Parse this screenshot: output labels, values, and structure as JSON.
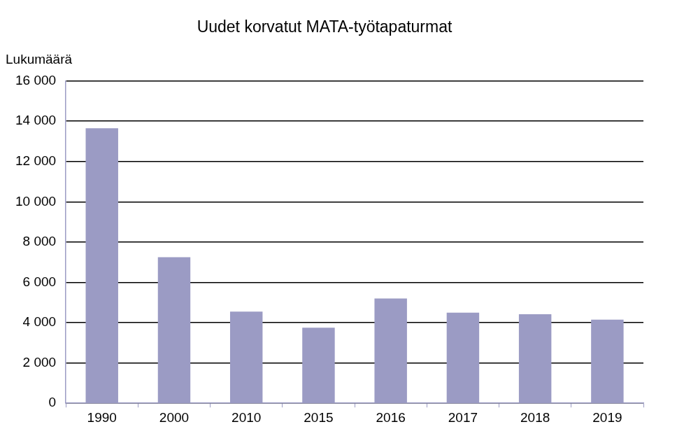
{
  "chart_data": {
    "type": "bar",
    "title": "Uudet korvatut MATA-työtapaturmat",
    "ylabel": "Lukumäärä",
    "categories": [
      "1990",
      "2000",
      "2010",
      "2015",
      "2016",
      "2017",
      "2018",
      "2019"
    ],
    "values": [
      13650,
      7250,
      4550,
      3750,
      5200,
      4500,
      4420,
      4150
    ],
    "color": "#9b9bc4",
    "ylim": [
      0,
      16000
    ],
    "yticks": [
      0,
      {
        "value": 2000,
        "label": "2 000"
      },
      {
        "value": 4000,
        "label": "4 000"
      },
      {
        "value": 6000,
        "label": "6 000"
      },
      {
        "value": 8000,
        "label": "8 000"
      },
      {
        "value": 10000,
        "label": "10 000"
      },
      {
        "value": 12000,
        "label": "12 000"
      },
      {
        "value": 14000,
        "label": "14 000"
      },
      {
        "value": 16000,
        "label": "16 000"
      }
    ],
    "grid": true
  }
}
